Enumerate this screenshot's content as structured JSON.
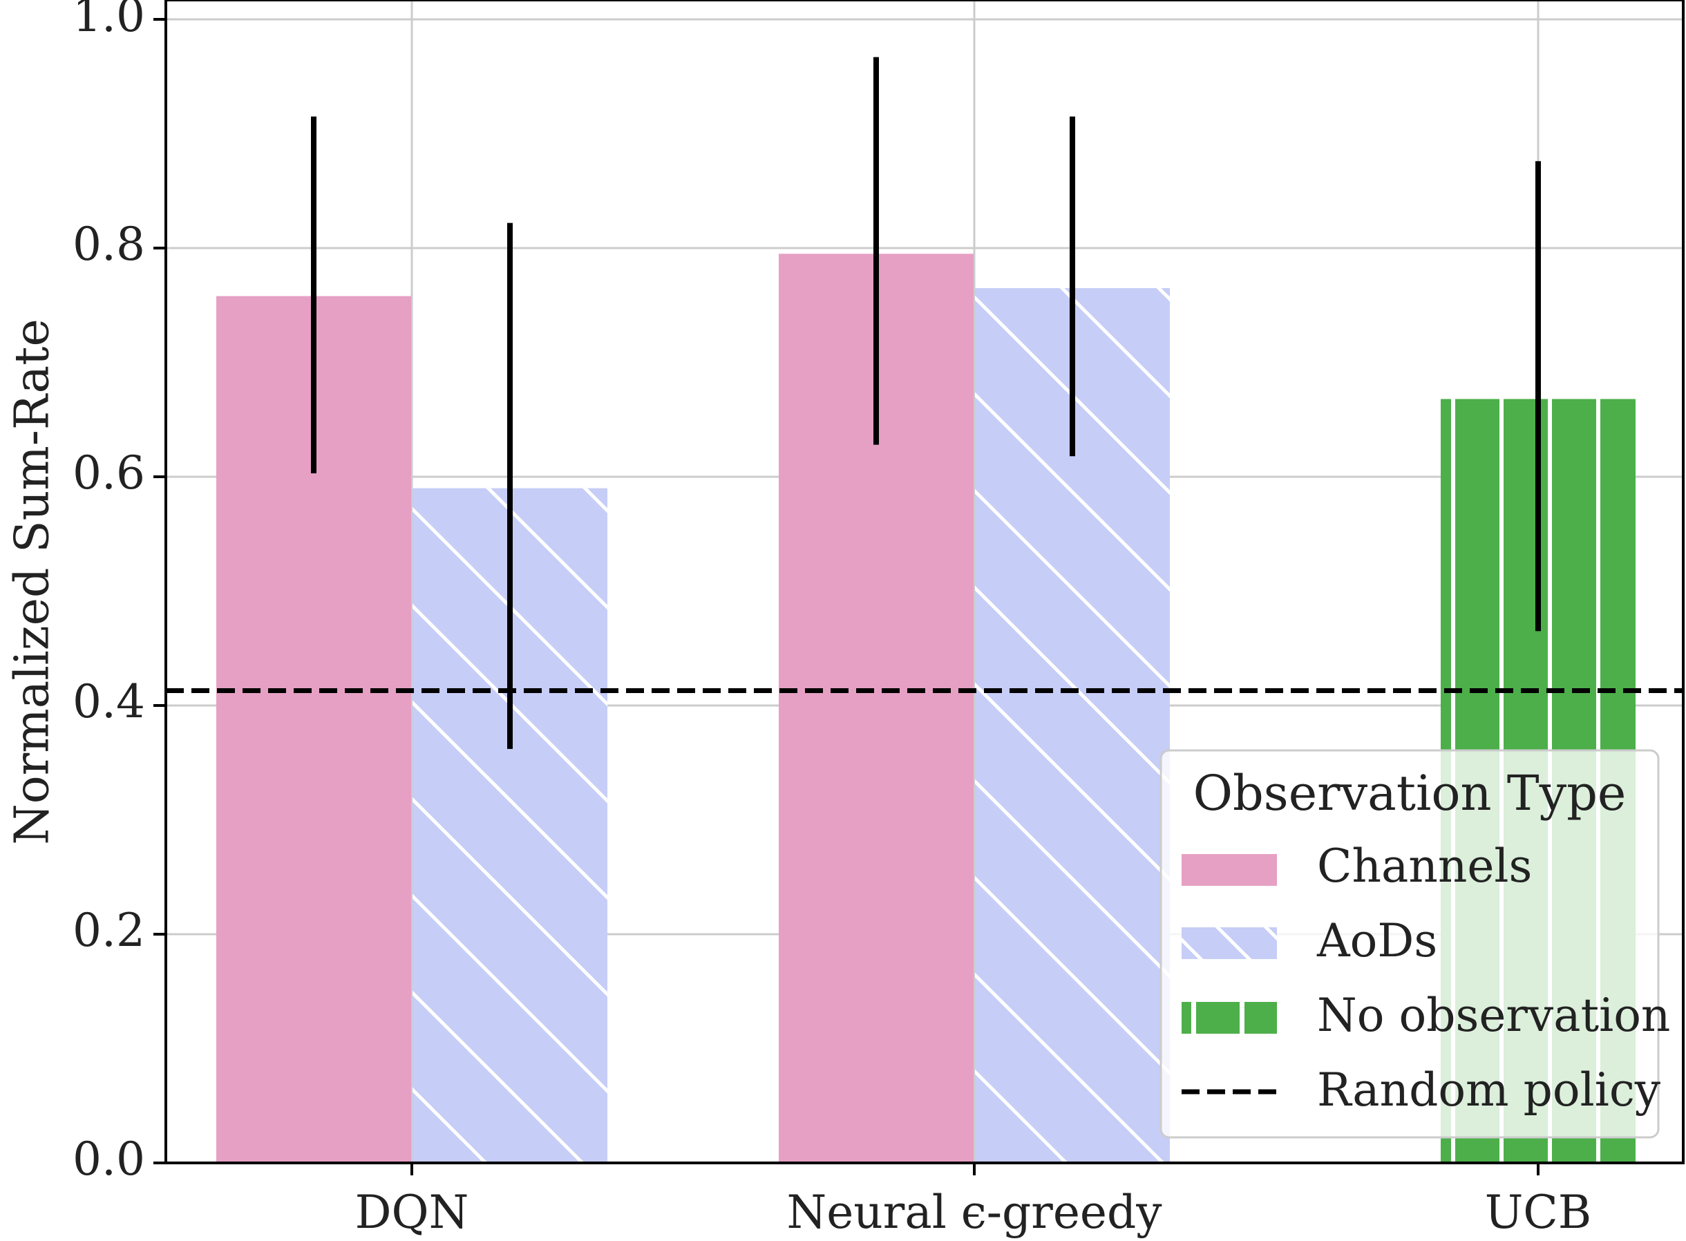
{
  "chart_data": {
    "type": "bar",
    "categories": [
      "DQN",
      "Neural ϵ-greedy",
      "UCB"
    ],
    "series": [
      {
        "name": "Channels",
        "values": [
          0.758,
          0.795,
          null
        ],
        "errors": [
          [
            0.603,
            0.915
          ],
          [
            0.628,
            0.967
          ],
          null
        ],
        "color": "#e6a0c4",
        "pattern": "solid"
      },
      {
        "name": "AoDs",
        "values": [
          0.59,
          0.765,
          null
        ],
        "errors": [
          [
            0.362,
            0.822
          ],
          [
            0.618,
            0.915
          ],
          null
        ],
        "color": "#c6cdf6",
        "pattern": "diagonal-hatch"
      },
      {
        "name": "No observation",
        "values": [
          null,
          null,
          0.668
        ],
        "errors": [
          null,
          null,
          [
            0.465,
            0.876
          ]
        ],
        "color": "#4daf4a",
        "pattern": "vertical-hatch"
      }
    ],
    "reference_lines": [
      {
        "name": "Random policy",
        "value": 0.413,
        "style": "dashed",
        "color": "#000000"
      }
    ],
    "ylabel": "Normalized Sum-Rate",
    "xlabel": "",
    "ylim": [
      0.0,
      1.0
    ],
    "yticks": [
      "0.0",
      "0.2",
      "0.4",
      "0.6",
      "0.8",
      "1.0"
    ],
    "grid": true,
    "legend": {
      "title": "Observation Type",
      "position": "lower-right",
      "entries": [
        "Channels",
        "AoDs",
        "No observation",
        "Random policy"
      ]
    }
  }
}
